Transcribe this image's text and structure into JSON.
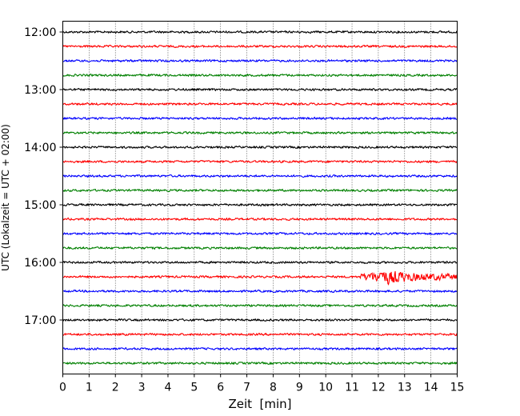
{
  "chart_data": {
    "type": "line",
    "title": "",
    "xlabel": "Zeit  [min]",
    "ylabel": "UTC (Lokalzeit = UTC + 02:00)",
    "xlim": [
      0,
      15
    ],
    "x_ticks": [
      0,
      1,
      2,
      3,
      4,
      5,
      6,
      7,
      8,
      9,
      10,
      11,
      12,
      13,
      14,
      15
    ],
    "x_gridlines": "dotted, every 1 min",
    "y_tick_labels": [
      "12:00",
      "13:00",
      "14:00",
      "15:00",
      "16:00",
      "17:00"
    ],
    "trace_duration_min": 15,
    "trace_colors_cycle": [
      "#000000",
      "#ff0000",
      "#0000ff",
      "#008000"
    ],
    "traces": [
      {
        "start": "12:00",
        "color": "#000000"
      },
      {
        "start": "12:15",
        "color": "#ff0000"
      },
      {
        "start": "12:30",
        "color": "#0000ff"
      },
      {
        "start": "12:45",
        "color": "#008000"
      },
      {
        "start": "13:00",
        "color": "#000000"
      },
      {
        "start": "13:15",
        "color": "#ff0000"
      },
      {
        "start": "13:30",
        "color": "#0000ff"
      },
      {
        "start": "13:45",
        "color": "#008000"
      },
      {
        "start": "14:00",
        "color": "#000000"
      },
      {
        "start": "14:15",
        "color": "#ff0000"
      },
      {
        "start": "14:30",
        "color": "#0000ff"
      },
      {
        "start": "14:45",
        "color": "#008000"
      },
      {
        "start": "15:00",
        "color": "#000000"
      },
      {
        "start": "15:15",
        "color": "#ff0000"
      },
      {
        "start": "15:30",
        "color": "#0000ff"
      },
      {
        "start": "15:45",
        "color": "#008000"
      },
      {
        "start": "16:00",
        "color": "#000000"
      },
      {
        "start": "16:15",
        "color": "#ff0000",
        "event": {
          "onset_min": 11.3,
          "peak_min": 12.4,
          "relative_peak_amplitude": 1.0
        }
      },
      {
        "start": "16:30",
        "color": "#0000ff"
      },
      {
        "start": "16:45",
        "color": "#008000"
      },
      {
        "start": "17:00",
        "color": "#000000"
      },
      {
        "start": "17:15",
        "color": "#ff0000"
      },
      {
        "start": "17:30",
        "color": "#0000ff"
      },
      {
        "start": "17:45",
        "color": "#008000"
      }
    ]
  }
}
